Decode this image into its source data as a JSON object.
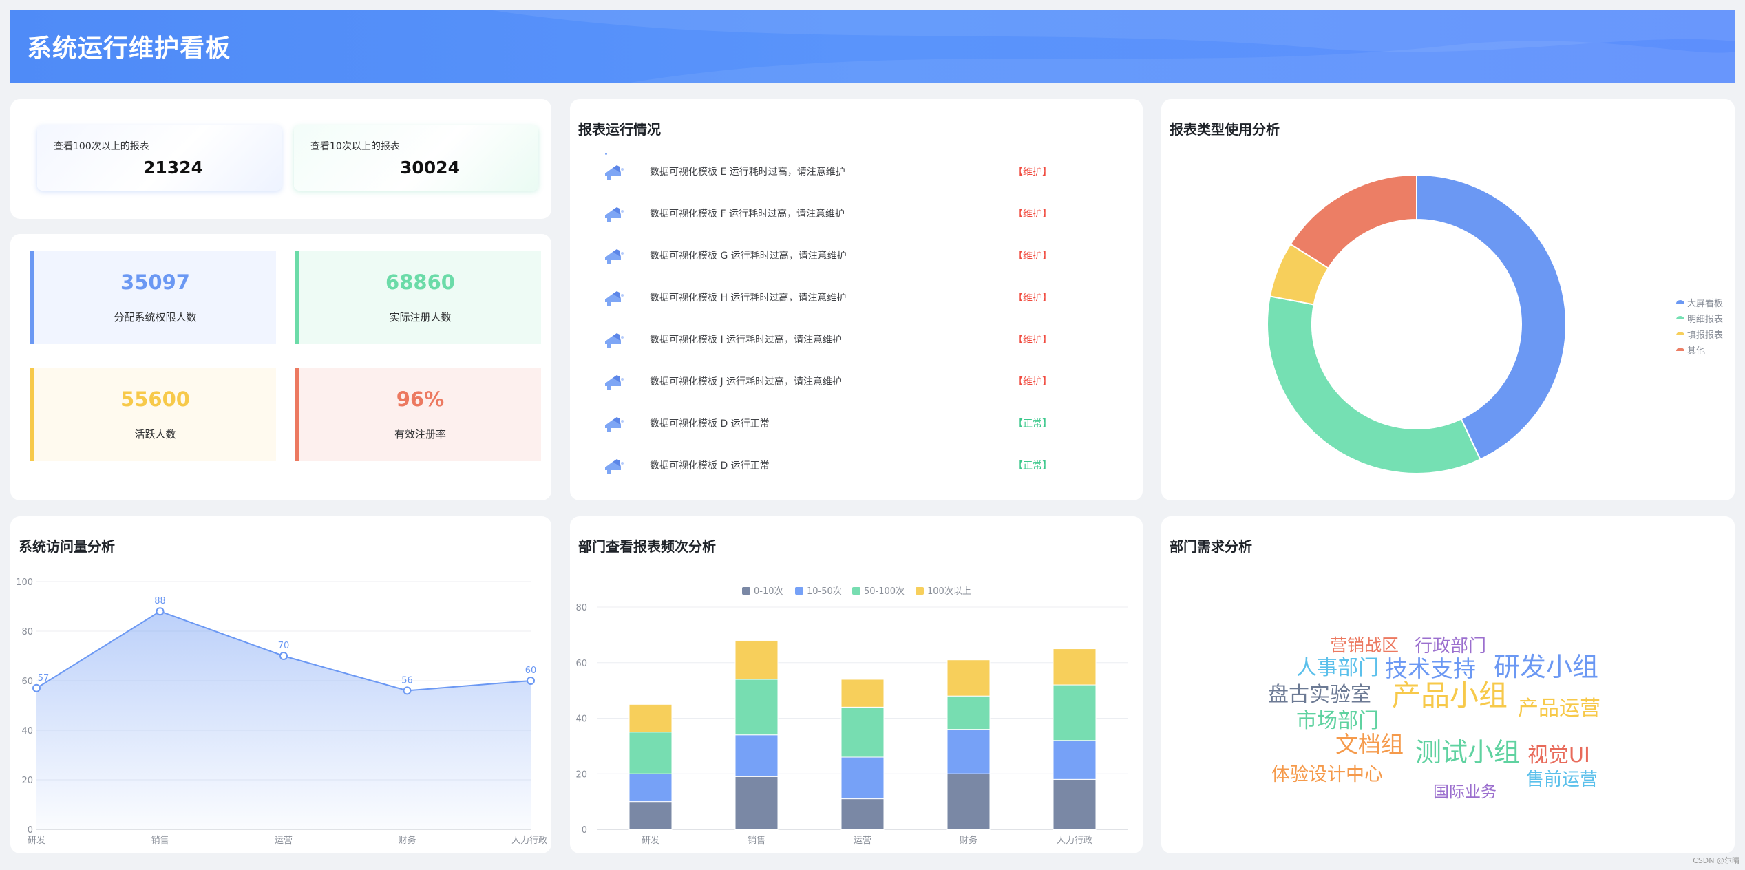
{
  "header": {
    "title": "系统运行维护看板"
  },
  "report_views": [
    {
      "label": "查看100次以上的报表",
      "value": "21324"
    },
    {
      "label": "查看10次以上的报表",
      "value": "30024"
    }
  ],
  "stats": [
    {
      "value": "35097",
      "label": "分配系统权限人数",
      "color": "#6b98f3"
    },
    {
      "value": "68860",
      "label": "实际注册人数",
      "color": "#6bdba8"
    },
    {
      "value": "55600",
      "label": "活跃人数",
      "color": "#f7c94a"
    },
    {
      "value": "96%",
      "label": "有效注册率",
      "color": "#ec7960"
    }
  ],
  "run_status": {
    "title": "报表运行情况",
    "rows": [
      {
        "text": "数据可视化模板 E 运行耗时过高，请注意维护",
        "status": "【维护】",
        "state": "maintain"
      },
      {
        "text": "数据可视化模板 F 运行耗时过高，请注意维护",
        "status": "【维护】",
        "state": "maintain"
      },
      {
        "text": "数据可视化模板 G 运行耗时过高，请注意维护",
        "status": "【维护】",
        "state": "maintain"
      },
      {
        "text": "数据可视化模板 H 运行耗时过高，请注意维护",
        "status": "【维护】",
        "state": "maintain"
      },
      {
        "text": "数据可视化模板 I 运行耗时过高，请注意维护",
        "status": "【维护】",
        "state": "maintain"
      },
      {
        "text": "数据可视化模板 J 运行耗时过高，请注意维护",
        "status": "【维护】",
        "state": "maintain"
      },
      {
        "text": "数据可视化模板 D 运行正常",
        "status": "【正常】",
        "state": "normal"
      },
      {
        "text": "数据可视化模板 D 运行正常",
        "status": "【正常】",
        "state": "normal"
      }
    ],
    "colors": {
      "maintain": "#f04a3e",
      "normal": "#3cc88c"
    }
  },
  "report_type": {
    "title": "报表类型使用分析",
    "legend": [
      "大屏看板",
      "明细报表",
      "填报报表",
      "其他"
    ]
  },
  "visits": {
    "title": "系统访问量分析"
  },
  "dept_freq": {
    "title": "部门查看报表频次分析"
  },
  "dept_demand": {
    "title": "部门需求分析",
    "words": [
      {
        "text": "营销战区",
        "color": "#ec7960"
      },
      {
        "text": "行政部门",
        "color": "#9b6fce"
      },
      {
        "text": "人事部门",
        "color": "#5bc0eb"
      },
      {
        "text": "技术支持",
        "color": "#6b98f3"
      },
      {
        "text": "研发小组",
        "color": "#6b98f3"
      },
      {
        "text": "盘古实验室",
        "color": "#6c7a94"
      },
      {
        "text": "产品小组",
        "color": "#f7c94a"
      },
      {
        "text": "产品运营",
        "color": "#f7c94a"
      },
      {
        "text": "市场部门",
        "color": "#5fd2a0"
      },
      {
        "text": "文档组",
        "color": "#f59a4b"
      },
      {
        "text": "测试小组",
        "color": "#5fd2a0"
      },
      {
        "text": "视觉UI",
        "color": "#e86a5a"
      },
      {
        "text": "体验设计中心",
        "color": "#f59a4b"
      },
      {
        "text": "售前运营",
        "color": "#5bc0eb"
      },
      {
        "text": "国际业务",
        "color": "#9b6fce"
      }
    ]
  },
  "chart_data": [
    {
      "type": "pie",
      "title": "报表类型使用分析",
      "donut": true,
      "categories": [
        "大屏看板",
        "明细报表",
        "填报报表",
        "其他"
      ],
      "values": [
        43,
        35,
        6,
        16
      ],
      "colors": [
        "#6b98f3",
        "#75e0b3",
        "#f7cf5b",
        "#ec7e65"
      ],
      "legend_position": "right"
    },
    {
      "type": "area",
      "title": "系统访问量分析",
      "categories": [
        "研发",
        "销售",
        "运营",
        "财务",
        "人力行政"
      ],
      "values": [
        57,
        88,
        70,
        56,
        60
      ],
      "yticks": [
        "0",
        "20",
        "40",
        "60",
        "80",
        "100"
      ],
      "ylim": [
        0,
        100
      ],
      "color": "#6b98f3",
      "data_labels": true
    },
    {
      "type": "bar",
      "stacked": true,
      "title": "部门查看报表频次分析",
      "categories": [
        "研发",
        "销售",
        "运营",
        "财务",
        "人力行政"
      ],
      "yticks": [
        "0",
        "20",
        "40",
        "60",
        "80"
      ],
      "ylim": [
        0,
        80
      ],
      "legend_position": "top",
      "series": [
        {
          "name": "0-10次",
          "values": [
            10,
            19,
            11,
            20,
            18
          ],
          "color": "#7a88a5"
        },
        {
          "name": "10-50次",
          "values": [
            10,
            15,
            15,
            16,
            14
          ],
          "color": "#76a1f7"
        },
        {
          "name": "50-100次",
          "values": [
            15,
            20,
            18,
            12,
            20
          ],
          "color": "#77ddb1"
        },
        {
          "name": "100次以上",
          "values": [
            10,
            14,
            10,
            13,
            13
          ],
          "color": "#f7cf5b"
        }
      ]
    }
  ],
  "footer": {
    "watermark": "CSDN @尔晴"
  }
}
